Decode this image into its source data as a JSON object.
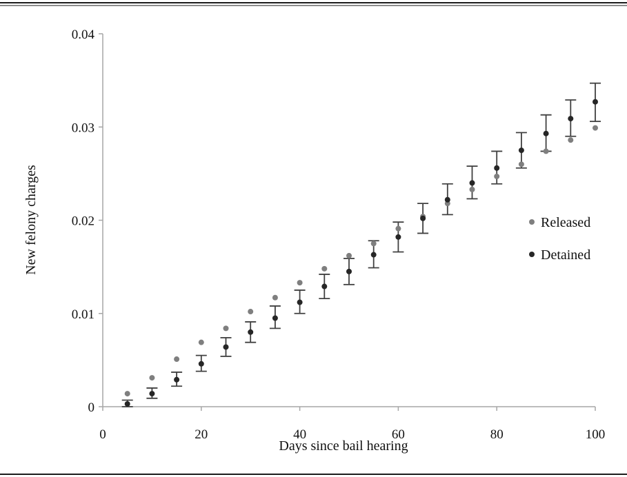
{
  "chart_data": {
    "type": "scatter",
    "xlabel": "Days since bail hearing",
    "ylabel": "New felony charges",
    "xlim": [
      0,
      100
    ],
    "ylim": [
      0,
      0.04
    ],
    "x_ticks": [
      0,
      20,
      40,
      60,
      80,
      100
    ],
    "y_ticks": [
      0,
      0.01,
      0.02,
      0.03,
      0.04
    ],
    "x_tick_labels": [
      "0",
      "20",
      "40",
      "60",
      "80",
      "100"
    ],
    "y_tick_labels": [
      "0",
      "0.01",
      "0.02",
      "0.03",
      "0.04"
    ],
    "grid": false,
    "legend": "right",
    "x": [
      5,
      10,
      15,
      20,
      25,
      30,
      35,
      40,
      45,
      50,
      55,
      60,
      65,
      70,
      75,
      80,
      85,
      90,
      95,
      100
    ],
    "series": [
      {
        "name": "Released",
        "color": "#7f7f7f",
        "values": [
          0.0014,
          0.0031,
          0.0051,
          0.0069,
          0.0084,
          0.0102,
          0.0117,
          0.0133,
          0.0148,
          0.0162,
          0.0175,
          0.0191,
          0.0204,
          0.0218,
          0.0233,
          0.0247,
          0.026,
          0.0274,
          0.0286,
          0.0299
        ]
      },
      {
        "name": "Detained",
        "color": "#262626",
        "values": [
          0.0003,
          0.0014,
          0.0029,
          0.0046,
          0.0064,
          0.008,
          0.0095,
          0.0112,
          0.0129,
          0.0145,
          0.0163,
          0.0182,
          0.0202,
          0.0222,
          0.024,
          0.0256,
          0.0275,
          0.0293,
          0.0309,
          0.0327
        ],
        "error_low": [
          0.0,
          0.0009,
          0.0022,
          0.0038,
          0.0054,
          0.0069,
          0.0084,
          0.01,
          0.0116,
          0.0131,
          0.0149,
          0.0166,
          0.0186,
          0.0206,
          0.0223,
          0.0239,
          0.0256,
          0.0274,
          0.029,
          0.0306
        ],
        "error_high": [
          0.0007,
          0.002,
          0.0037,
          0.0055,
          0.0074,
          0.0091,
          0.0108,
          0.0125,
          0.0142,
          0.0159,
          0.0178,
          0.0198,
          0.0218,
          0.0239,
          0.0258,
          0.0274,
          0.0294,
          0.0313,
          0.0329,
          0.0347
        ]
      }
    ]
  }
}
